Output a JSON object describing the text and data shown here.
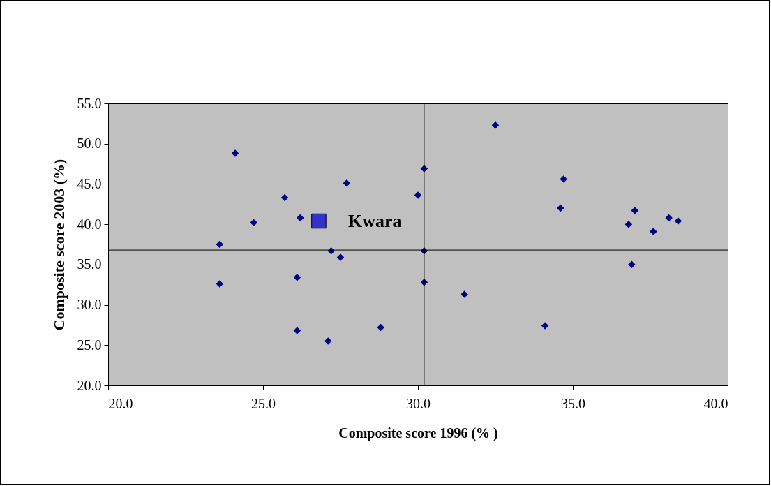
{
  "chart_data": {
    "type": "scatter",
    "xlabel": "Composite score 1996 (% )",
    "ylabel": "Composite score 2003 (%)",
    "xlim": [
      20,
      40
    ],
    "ylim": [
      20,
      55
    ],
    "xticks": [
      {
        "value": 20,
        "label": "20.0"
      },
      {
        "value": 25,
        "label": "25.0"
      },
      {
        "value": 30,
        "label": "30.0"
      },
      {
        "value": 35,
        "label": "35.0"
      },
      {
        "value": 40,
        "label": "40.0"
      }
    ],
    "yticks": [
      {
        "value": 20,
        "label": "20.0"
      },
      {
        "value": 25,
        "label": "25.0"
      },
      {
        "value": 30,
        "label": "30.0"
      },
      {
        "value": 35,
        "label": "35.0"
      },
      {
        "value": 40,
        "label": "40.0"
      },
      {
        "value": 45,
        "label": "45.0"
      },
      {
        "value": 50,
        "label": "50.0"
      },
      {
        "value": 55,
        "label": "55.0"
      }
    ],
    "marker": "diamond",
    "series": [
      {
        "color": "#000080",
        "x": [
          24.1,
          32.5,
          25.7,
          27.7,
          30.2,
          30.0,
          34.7,
          34.6,
          24.7,
          26.2,
          23.6,
          23.6,
          27.2,
          27.5,
          30.2,
          30.2,
          26.1,
          26.1,
          27.1,
          28.8,
          31.5,
          34.1,
          36.8,
          37.0,
          36.9,
          37.6,
          38.1,
          38.4
        ],
        "values": [
          48.8,
          52.3,
          43.3,
          45.1,
          46.9,
          43.6,
          45.6,
          42.0,
          40.2,
          40.8,
          37.5,
          32.6,
          36.7,
          35.9,
          36.7,
          32.8,
          33.4,
          26.8,
          25.5,
          27.2,
          31.3,
          27.4,
          40.0,
          41.7,
          35.0,
          39.1,
          40.8,
          40.4
        ]
      },
      {
        "color": "#3333cc",
        "marker": "square",
        "x": [
          26.8
        ],
        "values": [
          40.4
        ]
      }
    ],
    "ref_lines": [
      {
        "axis": "x",
        "value": 30.2,
        "color": "#000000"
      },
      {
        "axis": "y",
        "value": 36.8,
        "color": "#000000"
      }
    ],
    "annotations": [
      {
        "text": "Kwara",
        "x": 26.8,
        "y": 40.4
      }
    ]
  }
}
